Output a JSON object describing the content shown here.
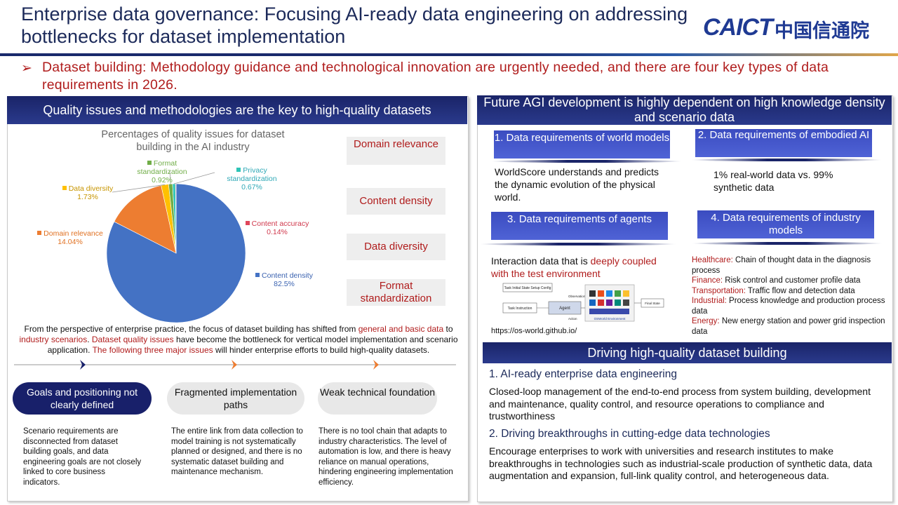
{
  "title": "Enterprise data governance: Focusing AI-ready data engineering on addressing bottlenecks for dataset implementation",
  "logo": {
    "en": "CAICT",
    "cn": "中国信通院"
  },
  "subheading": "Dataset building: Methodology guidance and technological innovation are urgently needed, and there are four key types of data requirements in 2026.",
  "left_panel": {
    "banner": "Quality issues and methodologies are the key to high-quality datasets",
    "chart_title": "Percentages of quality issues for dataset building in the AI industry",
    "categories": [
      "Domain relevance",
      "Content density",
      "Data diversity",
      "Format standardization"
    ],
    "paragraph": {
      "p1": "From the perspective of enterprise practice, the focus of dataset building has shifted from ",
      "r1": "general and basic data",
      "p2": " to ",
      "r2": "industry scenarios",
      "p3": ". ",
      "r3": "Dataset quality issues",
      "p4": " have become the bottleneck for vertical model implementation and scenario application. ",
      "r4": "The following three major issues",
      "p5": " will hinder enterprise efforts to build high-quality datasets."
    },
    "issues": [
      {
        "label": "Goals and positioning not clearly defined",
        "text": "Scenario requirements are disconnected from dataset building goals, and data engineering goals are not closely linked to core business indicators."
      },
      {
        "label": "Fragmented implementation paths",
        "text": "The entire link from data collection to model training is not systematically planned or designed, and there is no systematic dataset building and maintenance mechanism."
      },
      {
        "label": "Weak technical foundation",
        "text": "There is no tool chain that adapts to industry characteristics. The level of automation is low, and there is heavy reliance on manual operations, hindering engineering implementation efficiency."
      }
    ]
  },
  "chart_data": {
    "type": "pie",
    "title": "Percentages of quality issues for dataset building in the AI industry",
    "slices": [
      {
        "name": "Content density",
        "value": 82.5,
        "label": "82.5%",
        "color": "#4472c4"
      },
      {
        "name": "Domain relevance",
        "value": 14.04,
        "label": "14.04%",
        "color": "#ed7d31"
      },
      {
        "name": "Data diversity",
        "value": 1.73,
        "label": "1.73%",
        "color": "#ffc000"
      },
      {
        "name": "Format standardization",
        "value": 0.92,
        "label": "0.92%",
        "color": "#70ad47"
      },
      {
        "name": "Privacy standardization",
        "value": 0.67,
        "label": "0.67%",
        "color": "#2ec4b6"
      },
      {
        "name": "Content accuracy",
        "value": 0.14,
        "label": "0.14%",
        "color": "#e0465a"
      }
    ]
  },
  "right_panel": {
    "banner": "Future AGI development is highly dependent on high knowledge density and scenario data",
    "req1": {
      "title": "1. Data requirements of world models",
      "text": "WorldScore understands and predicts the dynamic evolution of the physical world."
    },
    "req2": {
      "title": "2. Data requirements of embodied AI",
      "text": "1% real-world data vs. 99% synthetic data"
    },
    "req3": {
      "title": "3. Data requirements of agents",
      "text_a": "Interaction data that is ",
      "text_b": "deeply coupled with the test environment",
      "url": "https://os-world.github.io/"
    },
    "req4": {
      "title": "4. Data requirements of industry models",
      "items": [
        {
          "k": "Healthcare:",
          "v": " Chain of thought data in the diagnosis process"
        },
        {
          "k": "Finance:",
          "v": " Risk control and customer profile data"
        },
        {
          "k": "Transportation:",
          "v": " Traffic flow and detection data"
        },
        {
          "k": "Industrial:",
          "v": " Process knowledge and production process data"
        },
        {
          "k": "Energy:",
          "v": " New energy station and power grid inspection data"
        }
      ]
    },
    "osworld": {
      "task_setup": "Task Initial State Setup Config",
      "task_instruction": "Task Instruction",
      "agent": "Agent",
      "observation": "Observation",
      "action": "Action",
      "final_state": "Final State",
      "env": "OSWorld Environment"
    }
  },
  "driving": {
    "banner": "Driving high-quality dataset building",
    "items": [
      {
        "heading": "1. AI-ready enterprise data engineering",
        "text": "Closed-loop management of the end-to-end process from system building, development and maintenance, quality control, and resource operations to compliance and trustworthiness"
      },
      {
        "heading": "2. Driving breakthroughs in cutting-edge data technologies",
        "text": "Encourage enterprises to work with universities and research institutes to make breakthroughs in technologies such as industrial-scale production of synthetic data, data augmentation and expansion, full-link quality control, and heterogeneous data."
      }
    ]
  }
}
